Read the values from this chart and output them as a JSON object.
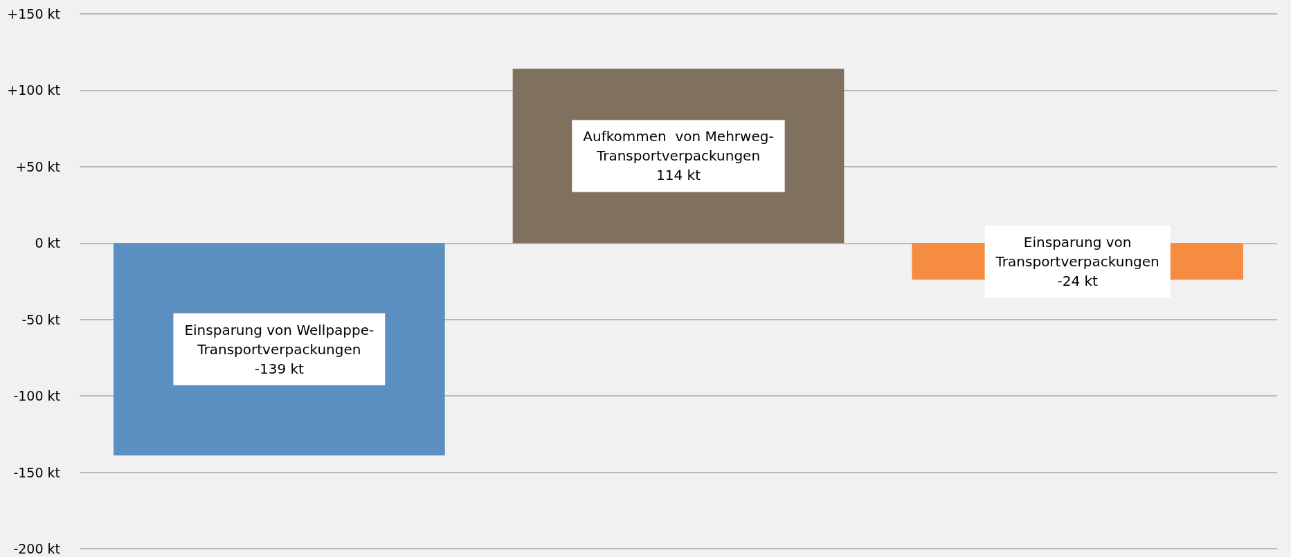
{
  "chart_data": {
    "type": "bar",
    "categories": [
      null,
      null,
      null
    ],
    "values": [
      -139,
      114,
      -24
    ],
    "colors": [
      "#5a8fbf",
      "#80715e",
      "#f58c42"
    ],
    "value_labels": [
      "Einsparung von Wellpappe-\nTransportverpackungen\n-139 kt",
      "Aufkommen  von Mehrweg-\nTransportverpackungen\n114 kt",
      "Einsparung von\nTransportverpackungen\n-24 kt"
    ],
    "ylim": [
      -200,
      150
    ],
    "yticks": [
      {
        "value": -200,
        "label": "-200 kt"
      },
      {
        "value": -150,
        "label": "-150 kt"
      },
      {
        "value": -100,
        "label": "-100 kt"
      },
      {
        "value": -50,
        "label": "-50 kt"
      },
      {
        "value": 0,
        "label": "0 kt"
      },
      {
        "value": 50,
        "label": "+50 kt"
      },
      {
        "value": 100,
        "label": "+100 kt"
      },
      {
        "value": 150,
        "label": "+150 kt"
      }
    ],
    "grid": true
  }
}
